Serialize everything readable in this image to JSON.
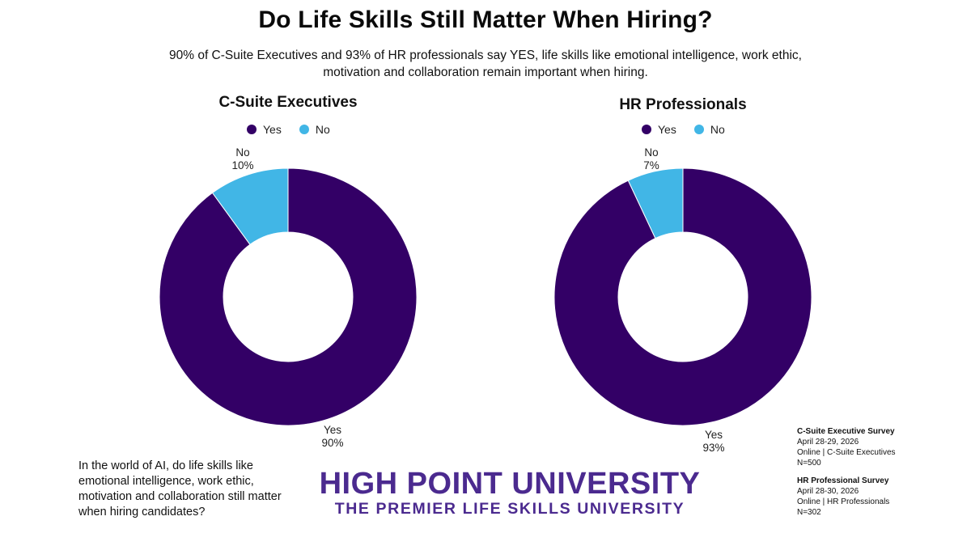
{
  "header": {
    "title": "Do Life Skills Still Matter When Hiring?",
    "subtitle": "90% of C-Suite Executives and 93% of HR professionals say YES, life skills like emotional intelligence, work ethic, motivation and collaboration remain important when hiring."
  },
  "colors": {
    "yes": "#330066",
    "no": "#41b6e6",
    "brand": "#4b2a8f"
  },
  "chart_data": [
    {
      "type": "pie",
      "title": "C-Suite Executives",
      "legend": [
        "Yes",
        "No"
      ],
      "legend_position": "top",
      "slices": [
        {
          "label": "Yes",
          "value": 90,
          "display": "90%"
        },
        {
          "label": "No",
          "value": 10,
          "display": "10%"
        }
      ]
    },
    {
      "type": "pie",
      "title": "HR Professionals",
      "legend": [
        "Yes",
        "No"
      ],
      "legend_position": "top",
      "slices": [
        {
          "label": "Yes",
          "value": 93,
          "display": "93%"
        },
        {
          "label": "No",
          "value": 7,
          "display": "7%"
        }
      ]
    }
  ],
  "question": "In the world of AI, do life skills like emotional intelligence, work ethic, motivation and collaboration still matter when hiring candidates?",
  "brand": {
    "name": "HIGH POINT UNIVERSITY",
    "tagline": "THE PREMIER LIFE SKILLS UNIVERSITY"
  },
  "surveys": [
    {
      "heading": "C-Suite Executive Survey",
      "dates": "April 28-29, 2026",
      "mode": "Online | C-Suite Executives",
      "n": "N=500"
    },
    {
      "heading": "HR Professional Survey",
      "dates": "April 28-30, 2026",
      "mode": "Online | HR Professionals",
      "n": "N=302"
    }
  ]
}
